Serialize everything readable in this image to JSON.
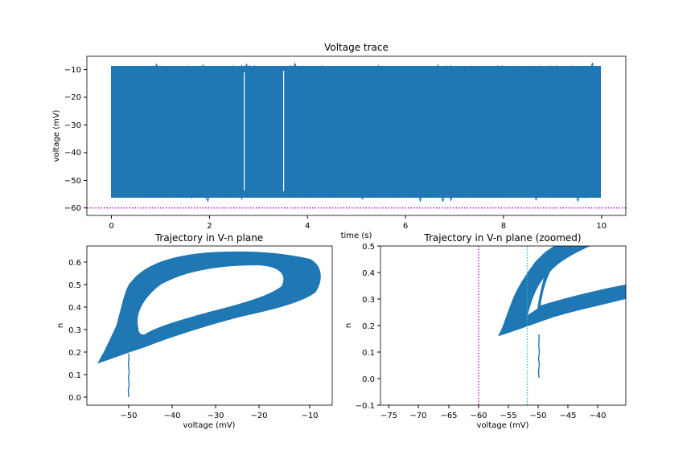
{
  "colors": {
    "trace": "#1f77b4",
    "magenta": "#bf00bf",
    "cyan": "#17becf"
  },
  "chart_data": [
    {
      "type": "line",
      "title": "Voltage trace",
      "xlabel": "time (s)",
      "ylabel": "voltage (mV)",
      "xlim": [
        -0.5,
        10.5
      ],
      "ylim": [
        -62,
        -5
      ],
      "xticks": [
        "0",
        "2",
        "4",
        "6",
        "8",
        "10"
      ],
      "yticks": [
        "−60",
        "−50",
        "−40",
        "−30",
        "−20",
        "−10"
      ],
      "series": [
        {
          "description": "continuous spiking trace",
          "x_range": [
            0,
            10
          ],
          "y_min": -57,
          "y_max": -8,
          "gaps_at": [
            2.72,
            3.53
          ]
        }
      ],
      "hlines": [
        {
          "y": -60,
          "style": "dotted",
          "color": "magenta"
        }
      ]
    },
    {
      "type": "line",
      "title": "Trajectory in V-n plane",
      "xlabel": "voltage (mV)",
      "ylabel": "n",
      "xlim": [
        -59.5,
        -6
      ],
      "ylim": [
        -0.03,
        0.68
      ],
      "xticks": [
        "−50",
        "−40",
        "−30",
        "−20",
        "−10"
      ],
      "yticks": [
        "0.0",
        "0.1",
        "0.2",
        "0.3",
        "0.4",
        "0.5",
        "0.6"
      ],
      "series": [
        {
          "description": "limit cycle",
          "v_range": [
            -57,
            -8
          ],
          "n_range": [
            0.15,
            0.65
          ]
        }
      ]
    },
    {
      "type": "line",
      "title": "Trajectory in V-n plane (zoomed)",
      "xlabel": "voltage (mV)",
      "ylabel": "n",
      "xlim": [
        -76,
        -35
      ],
      "ylim": [
        -0.1,
        0.5
      ],
      "xticks": [
        "−75",
        "−70",
        "−65",
        "−60",
        "−55",
        "−50",
        "−45",
        "−40"
      ],
      "yticks": [
        "−0.1",
        "0.0",
        "0.1",
        "0.2",
        "0.3",
        "0.4",
        "0.5"
      ],
      "vlines": [
        {
          "x": -60,
          "style": "dotted",
          "color": "magenta"
        },
        {
          "x": -52,
          "style": "dotted",
          "color": "cyan"
        }
      ]
    }
  ]
}
